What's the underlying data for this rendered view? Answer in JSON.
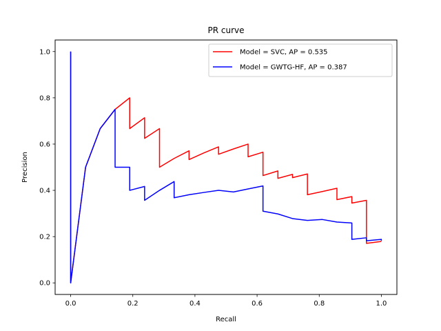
{
  "chart_data": {
    "type": "line",
    "title": "PR curve",
    "xlabel": "Recall",
    "ylabel": "Precision",
    "xlim": [
      -0.05,
      1.05
    ],
    "ylim": [
      -0.05,
      1.05
    ],
    "xticks": [
      0.0,
      0.2,
      0.4,
      0.6,
      0.8,
      1.0
    ],
    "xtick_labels": [
      "0.0",
      "0.2",
      "0.4",
      "0.6",
      "0.8",
      "1.0"
    ],
    "yticks": [
      0.0,
      0.2,
      0.4,
      0.6,
      0.8,
      1.0
    ],
    "ytick_labels": [
      "0.0",
      "0.2",
      "0.4",
      "0.6",
      "0.8",
      "1.0"
    ],
    "grid": false,
    "legend_position": "upper right",
    "series": [
      {
        "name": "Model = SVC, AP = 0.535",
        "color": "#ff0000",
        "x": [
          0.0,
          0.0,
          0.0,
          0.048,
          0.095,
          0.143,
          0.19,
          0.19,
          0.238,
          0.238,
          0.286,
          0.286,
          0.333,
          0.381,
          0.381,
          0.429,
          0.476,
          0.476,
          0.524,
          0.571,
          0.571,
          0.619,
          0.619,
          0.667,
          0.667,
          0.714,
          0.714,
          0.762,
          0.762,
          0.81,
          0.857,
          0.857,
          0.905,
          0.905,
          0.952,
          0.952,
          1.0
        ],
        "y": [
          1.0,
          0.0,
          0.0,
          0.5,
          0.667,
          0.75,
          0.8,
          0.667,
          0.714,
          0.625,
          0.667,
          0.5,
          0.538,
          0.571,
          0.533,
          0.562,
          0.588,
          0.556,
          0.579,
          0.6,
          0.545,
          0.565,
          0.464,
          0.484,
          0.452,
          0.469,
          0.455,
          0.471,
          0.381,
          0.395,
          0.409,
          0.36,
          0.373,
          0.345,
          0.357,
          0.171,
          0.179
        ]
      },
      {
        "name": "Model = GWTG-HF, AP = 0.387",
        "color": "#0000ff",
        "x": [
          0.0,
          0.0,
          0.0,
          0.048,
          0.095,
          0.143,
          0.143,
          0.19,
          0.19,
          0.238,
          0.238,
          0.286,
          0.333,
          0.333,
          0.381,
          0.429,
          0.476,
          0.524,
          0.571,
          0.619,
          0.619,
          0.667,
          0.714,
          0.762,
          0.81,
          0.857,
          0.905,
          0.905,
          0.952,
          0.952,
          1.0,
          1.0
        ],
        "y": [
          1.0,
          0.0,
          0.0,
          0.5,
          0.667,
          0.75,
          0.5,
          0.5,
          0.4,
          0.417,
          0.357,
          0.4,
          0.438,
          0.368,
          0.381,
          0.391,
          0.4,
          0.393,
          0.406,
          0.419,
          0.31,
          0.298,
          0.278,
          0.27,
          0.274,
          0.263,
          0.259,
          0.188,
          0.195,
          0.182,
          0.188,
          0.182
        ]
      }
    ]
  }
}
